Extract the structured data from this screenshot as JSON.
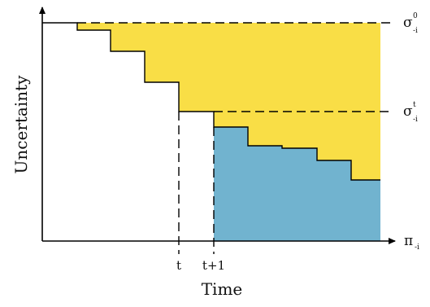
{
  "axes": {
    "ylabel": "Uncertainty",
    "xlabel": "Time"
  },
  "ticks": {
    "t": "t",
    "t_plus_1": "t+1"
  },
  "labels": {
    "sigma_0": {
      "base": "σ",
      "sup": "0",
      "sub": "-i"
    },
    "sigma_t": {
      "base": "σ",
      "sup": "t",
      "sub": "-i"
    },
    "pi": {
      "base": "π",
      "sub": "-i"
    }
  },
  "colors": {
    "yellow_region": "#F9DE46",
    "blue_region": "#71B3CF",
    "line": "#000000"
  }
}
